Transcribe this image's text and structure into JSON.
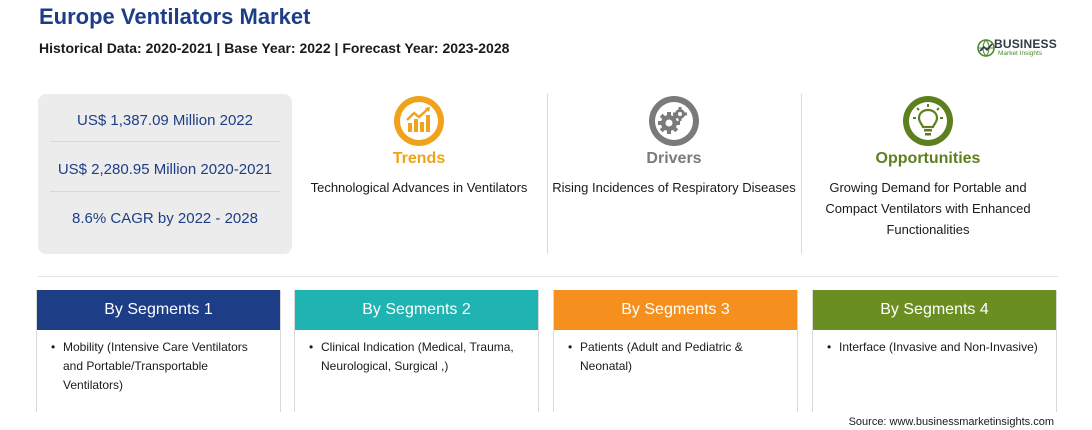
{
  "header": {
    "title": "Europe Ventilators Market",
    "subtitle": "Historical Data: 2020-2021 | Base Year: 2022 | Forecast Year: 2023-2028"
  },
  "logo": {
    "name": "BUSINESS",
    "tagline": "Market Insights",
    "color": "#4d8a2f"
  },
  "stats": [
    "US$ 1,387.09 Million 2022",
    "US$ 2,280.95 Million 2020-2021",
    "8.6% CAGR by 2022 - 2028"
  ],
  "cards": {
    "trends": {
      "title": "Trends",
      "text": "Technological Advances in Ventilators",
      "color": "#f0a21a",
      "icon": "rising-chart-icon"
    },
    "drivers": {
      "title": "Drivers",
      "text": "Rising Incidences of Respiratory Diseases",
      "color": "#7a7a7a",
      "icon": "gears-icon"
    },
    "opportunities": {
      "title": "Opportunities",
      "text": "Growing Demand for Portable and Compact Ventilators with Enhanced Functionalities",
      "color": "#5d7f1e",
      "icon": "lightbulb-icon"
    }
  },
  "segments": [
    {
      "title": "By Segments 1",
      "color": "#1d3e86",
      "item": "Mobility (Intensive Care Ventilators and Portable/Transportable Ventilators)"
    },
    {
      "title": "By Segments 2",
      "color": "#1fb3b1",
      "item": "Clinical Indication (Medical, Trauma, Neurological, Surgical ,)"
    },
    {
      "title": "By Segments 3",
      "color": "#f5901e",
      "item": "Patients (Adult and Pediatric & Neonatal)"
    },
    {
      "title": "By Segments 4",
      "color": "#6b8e23",
      "item": "Interface (Invasive and Non-Invasive)"
    }
  ],
  "source": "Source: www.businessmarketinsights.com"
}
